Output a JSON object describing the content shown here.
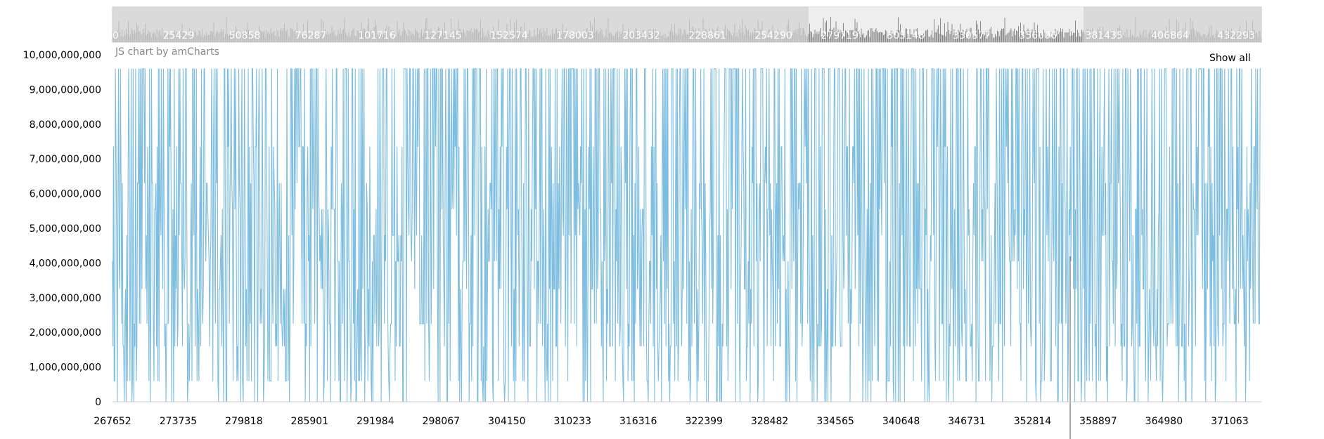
{
  "chart_data": {
    "type": "line",
    "title": "",
    "xlabel": "",
    "ylabel": "",
    "series": [
      {
        "color": "#7dbde0"
      }
    ],
    "ylim": [
      0,
      10000000000
    ],
    "y_ticks": [
      "0",
      "1,000,000,000",
      "2,000,000,000",
      "3,000,000,000",
      "4,000,000,000",
      "5,000,000,000",
      "6,000,000,000",
      "7,000,000,000",
      "8,000,000,000",
      "9,000,000,000",
      "10,000,000,000"
    ],
    "xlim": [
      267652,
      374000
    ],
    "x_ticks": [
      "267652",
      "273735",
      "279818",
      "285901",
      "291984",
      "298067",
      "304150",
      "310233",
      "316316",
      "322399",
      "328482",
      "334565",
      "340648",
      "346731",
      "352814",
      "358897",
      "364980",
      "371063"
    ],
    "value_levels": [
      0,
      600000000,
      1600000000,
      2250000000,
      3250000000,
      4050000000,
      4800000000,
      5550000000,
      6300000000,
      7350000000,
      8050000000,
      9600000000
    ],
    "cursor_x": 356300
  },
  "scrollbar": {
    "xlim": [
      0,
      442000
    ],
    "ticks": [
      "0",
      "25429",
      "50858",
      "76287",
      "101716",
      "127145",
      "152574",
      "178003",
      "203432",
      "228861",
      "254290",
      "279719",
      "305148",
      "330577",
      "356006",
      "381435",
      "406864",
      "432293"
    ],
    "selection": [
      267652,
      374000
    ],
    "colors": {
      "background": "#dadada",
      "selected": "#eeeeee",
      "graph": "#bbbbbb",
      "graph_selected": "#888888"
    }
  },
  "credit": "JS chart by amCharts",
  "show_all_label": "Show all",
  "colors": {
    "line": "#7dbde0",
    "cursor": "#555555",
    "axis": "#cccccc"
  }
}
